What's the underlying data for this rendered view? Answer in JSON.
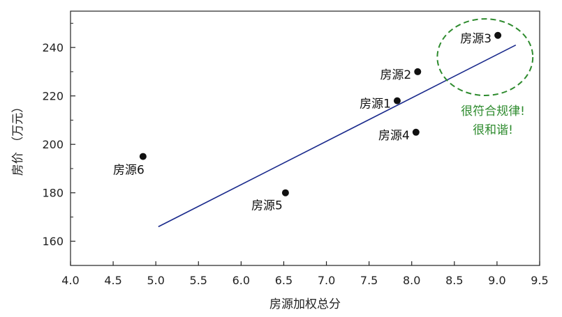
{
  "chart_data": {
    "type": "scatter",
    "title": "",
    "xlabel": "房源加权总分",
    "ylabel": "房价 （万元）",
    "xlim": [
      4.0,
      9.5
    ],
    "ylim": [
      150,
      255
    ],
    "xticks": [
      4.0,
      4.5,
      5.0,
      5.5,
      6.0,
      6.5,
      7.0,
      7.5,
      8.0,
      8.5,
      9.0,
      9.5
    ],
    "xtick_labels": [
      "4.0",
      "4.5",
      "5.0",
      "5.5",
      "6.0",
      "6.5",
      "7.0",
      "7.5",
      "8.0",
      "8.5",
      "9.0",
      "9.5"
    ],
    "yticks": [
      160,
      180,
      200,
      220,
      240
    ],
    "ytick_labels": [
      "160",
      "180",
      "200",
      "220",
      "240"
    ],
    "grid": false,
    "legend": "none",
    "points": [
      {
        "label": "房源1",
        "x": 7.83,
        "y": 218
      },
      {
        "label": "房源2",
        "x": 8.07,
        "y": 230
      },
      {
        "label": "房源3",
        "x": 9.01,
        "y": 245
      },
      {
        "label": "房源4",
        "x": 8.05,
        "y": 205
      },
      {
        "label": "房源5",
        "x": 6.52,
        "y": 180
      },
      {
        "label": "房源6",
        "x": 4.85,
        "y": 195
      }
    ],
    "fit_line": {
      "x": [
        5.03,
        9.22
      ],
      "y": [
        166,
        241
      ]
    },
    "annotation": {
      "text_lines": [
        "很符合规律!",
        "很和谐!"
      ],
      "center": {
        "x": 8.86,
        "y": 236
      },
      "radius": {
        "x": 0.56,
        "y": 15.8
      }
    },
    "colors": {
      "points": "#111111",
      "fit_line": "#1a2a8c",
      "annotation": "#2e8b2e",
      "axis": "#222222"
    }
  }
}
